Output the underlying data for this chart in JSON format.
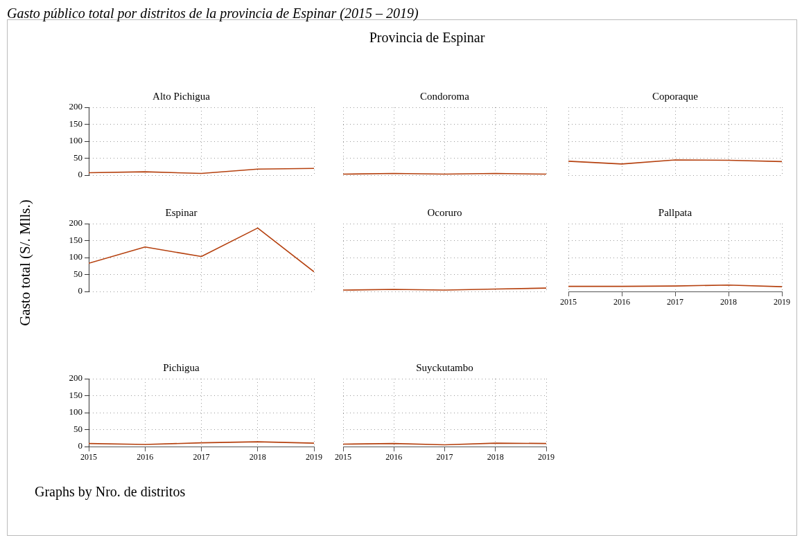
{
  "chart_data": [
    {
      "type": "line",
      "title": "Alto Pichigua",
      "annotations": [
        "Gasto público total por distritos de la provincia de Espinar (2015 – 2019)",
        "Provincia de Espinar"
      ],
      "x": [
        2015,
        2016,
        2017,
        2018,
        2019
      ],
      "values": [
        7,
        10,
        5,
        18,
        20
      ],
      "color": "#b5400e",
      "xlim": [
        2015,
        2019
      ],
      "xticks": [
        2015,
        2016,
        2017,
        2018,
        2019
      ],
      "ylim": [
        0,
        200
      ],
      "yticks": [
        0,
        50,
        100,
        150,
        200
      ],
      "grid": true,
      "tick_labels": "y",
      "marker": "none",
      "line_style": "solid"
    },
    {
      "type": "line",
      "title": "Condoroma",
      "x": [
        2015,
        2016,
        2017,
        2018,
        2019
      ],
      "values": [
        3,
        5,
        3,
        5,
        3
      ],
      "color": "#b5400e",
      "xlim": [
        2015,
        2019
      ],
      "xticks": [
        2015,
        2016,
        2017,
        2018,
        2019
      ],
      "ylim": [
        0,
        200
      ],
      "yticks": [
        0,
        50,
        100,
        150,
        200
      ],
      "grid": true,
      "tick_labels": false,
      "marker": "none",
      "line_style": "solid"
    },
    {
      "type": "line",
      "title": "Coporaque",
      "x": [
        2015,
        2016,
        2017,
        2018,
        2019
      ],
      "values": [
        41,
        33,
        45,
        44,
        40
      ],
      "color": "#b5400e",
      "xlim": [
        2015,
        2019
      ],
      "xticks": [
        2015,
        2016,
        2017,
        2018,
        2019
      ],
      "ylim": [
        0,
        200
      ],
      "yticks": [
        0,
        50,
        100,
        150,
        200
      ],
      "grid": true,
      "tick_labels": false,
      "marker": "none",
      "line_style": "solid"
    },
    {
      "type": "line",
      "title": "Espinar",
      "ylabel": "Gasto total (S/. Mlls.)",
      "x": [
        2015,
        2016,
        2017,
        2018,
        2019
      ],
      "values": [
        83,
        131,
        103,
        187,
        58
      ],
      "color": "#b5400e",
      "xlim": [
        2015,
        2019
      ],
      "xticks": [
        2015,
        2016,
        2017,
        2018,
        2019
      ],
      "ylim": [
        0,
        200
      ],
      "yticks": [
        0,
        50,
        100,
        150,
        200
      ],
      "grid": true,
      "tick_labels": "y",
      "marker": "none",
      "line_style": "solid"
    },
    {
      "type": "line",
      "title": "Ocoruro",
      "x": [
        2015,
        2016,
        2017,
        2018,
        2019
      ],
      "values": [
        4,
        6,
        4,
        7,
        10
      ],
      "color": "#b5400e",
      "xlim": [
        2015,
        2019
      ],
      "xticks": [
        2015,
        2016,
        2017,
        2018,
        2019
      ],
      "ylim": [
        0,
        200
      ],
      "yticks": [
        0,
        50,
        100,
        150,
        200
      ],
      "grid": true,
      "tick_labels": false,
      "marker": "none",
      "line_style": "solid"
    },
    {
      "type": "line",
      "title": "Pallpata",
      "x": [
        2015,
        2016,
        2017,
        2018,
        2019
      ],
      "values": [
        15,
        15,
        16,
        19,
        14
      ],
      "color": "#b5400e",
      "xlim": [
        2015,
        2019
      ],
      "xticks": [
        2015,
        2016,
        2017,
        2018,
        2019
      ],
      "ylim": [
        0,
        200
      ],
      "yticks": [
        0,
        50,
        100,
        150,
        200
      ],
      "grid": true,
      "tick_labels": "x",
      "marker": "none",
      "line_style": "solid"
    },
    {
      "type": "line",
      "title": "Pichigua",
      "annotations": [
        "Graphs by Nro. de distritos"
      ],
      "x": [
        2015,
        2016,
        2017,
        2018,
        2019
      ],
      "values": [
        9,
        6,
        11,
        14,
        10
      ],
      "color": "#b5400e",
      "xlim": [
        2015,
        2019
      ],
      "xticks": [
        2015,
        2016,
        2017,
        2018,
        2019
      ],
      "ylim": [
        0,
        200
      ],
      "yticks": [
        0,
        50,
        100,
        150,
        200
      ],
      "grid": true,
      "marker": "none",
      "line_style": "solid"
    },
    {
      "type": "line",
      "title": "Suyckutambo",
      "x": [
        2015,
        2016,
        2017,
        2018,
        2019
      ],
      "values": [
        7,
        9,
        5,
        10,
        9
      ],
      "color": "#b5400e",
      "xlim": [
        2015,
        2019
      ],
      "xticks": [
        2015,
        2016,
        2017,
        2018,
        2019
      ],
      "ylim": [
        0,
        200
      ],
      "yticks": [
        0,
        50,
        100,
        150,
        200
      ],
      "grid": true,
      "tick_labels": "x",
      "marker": "none",
      "line_style": "solid"
    }
  ]
}
